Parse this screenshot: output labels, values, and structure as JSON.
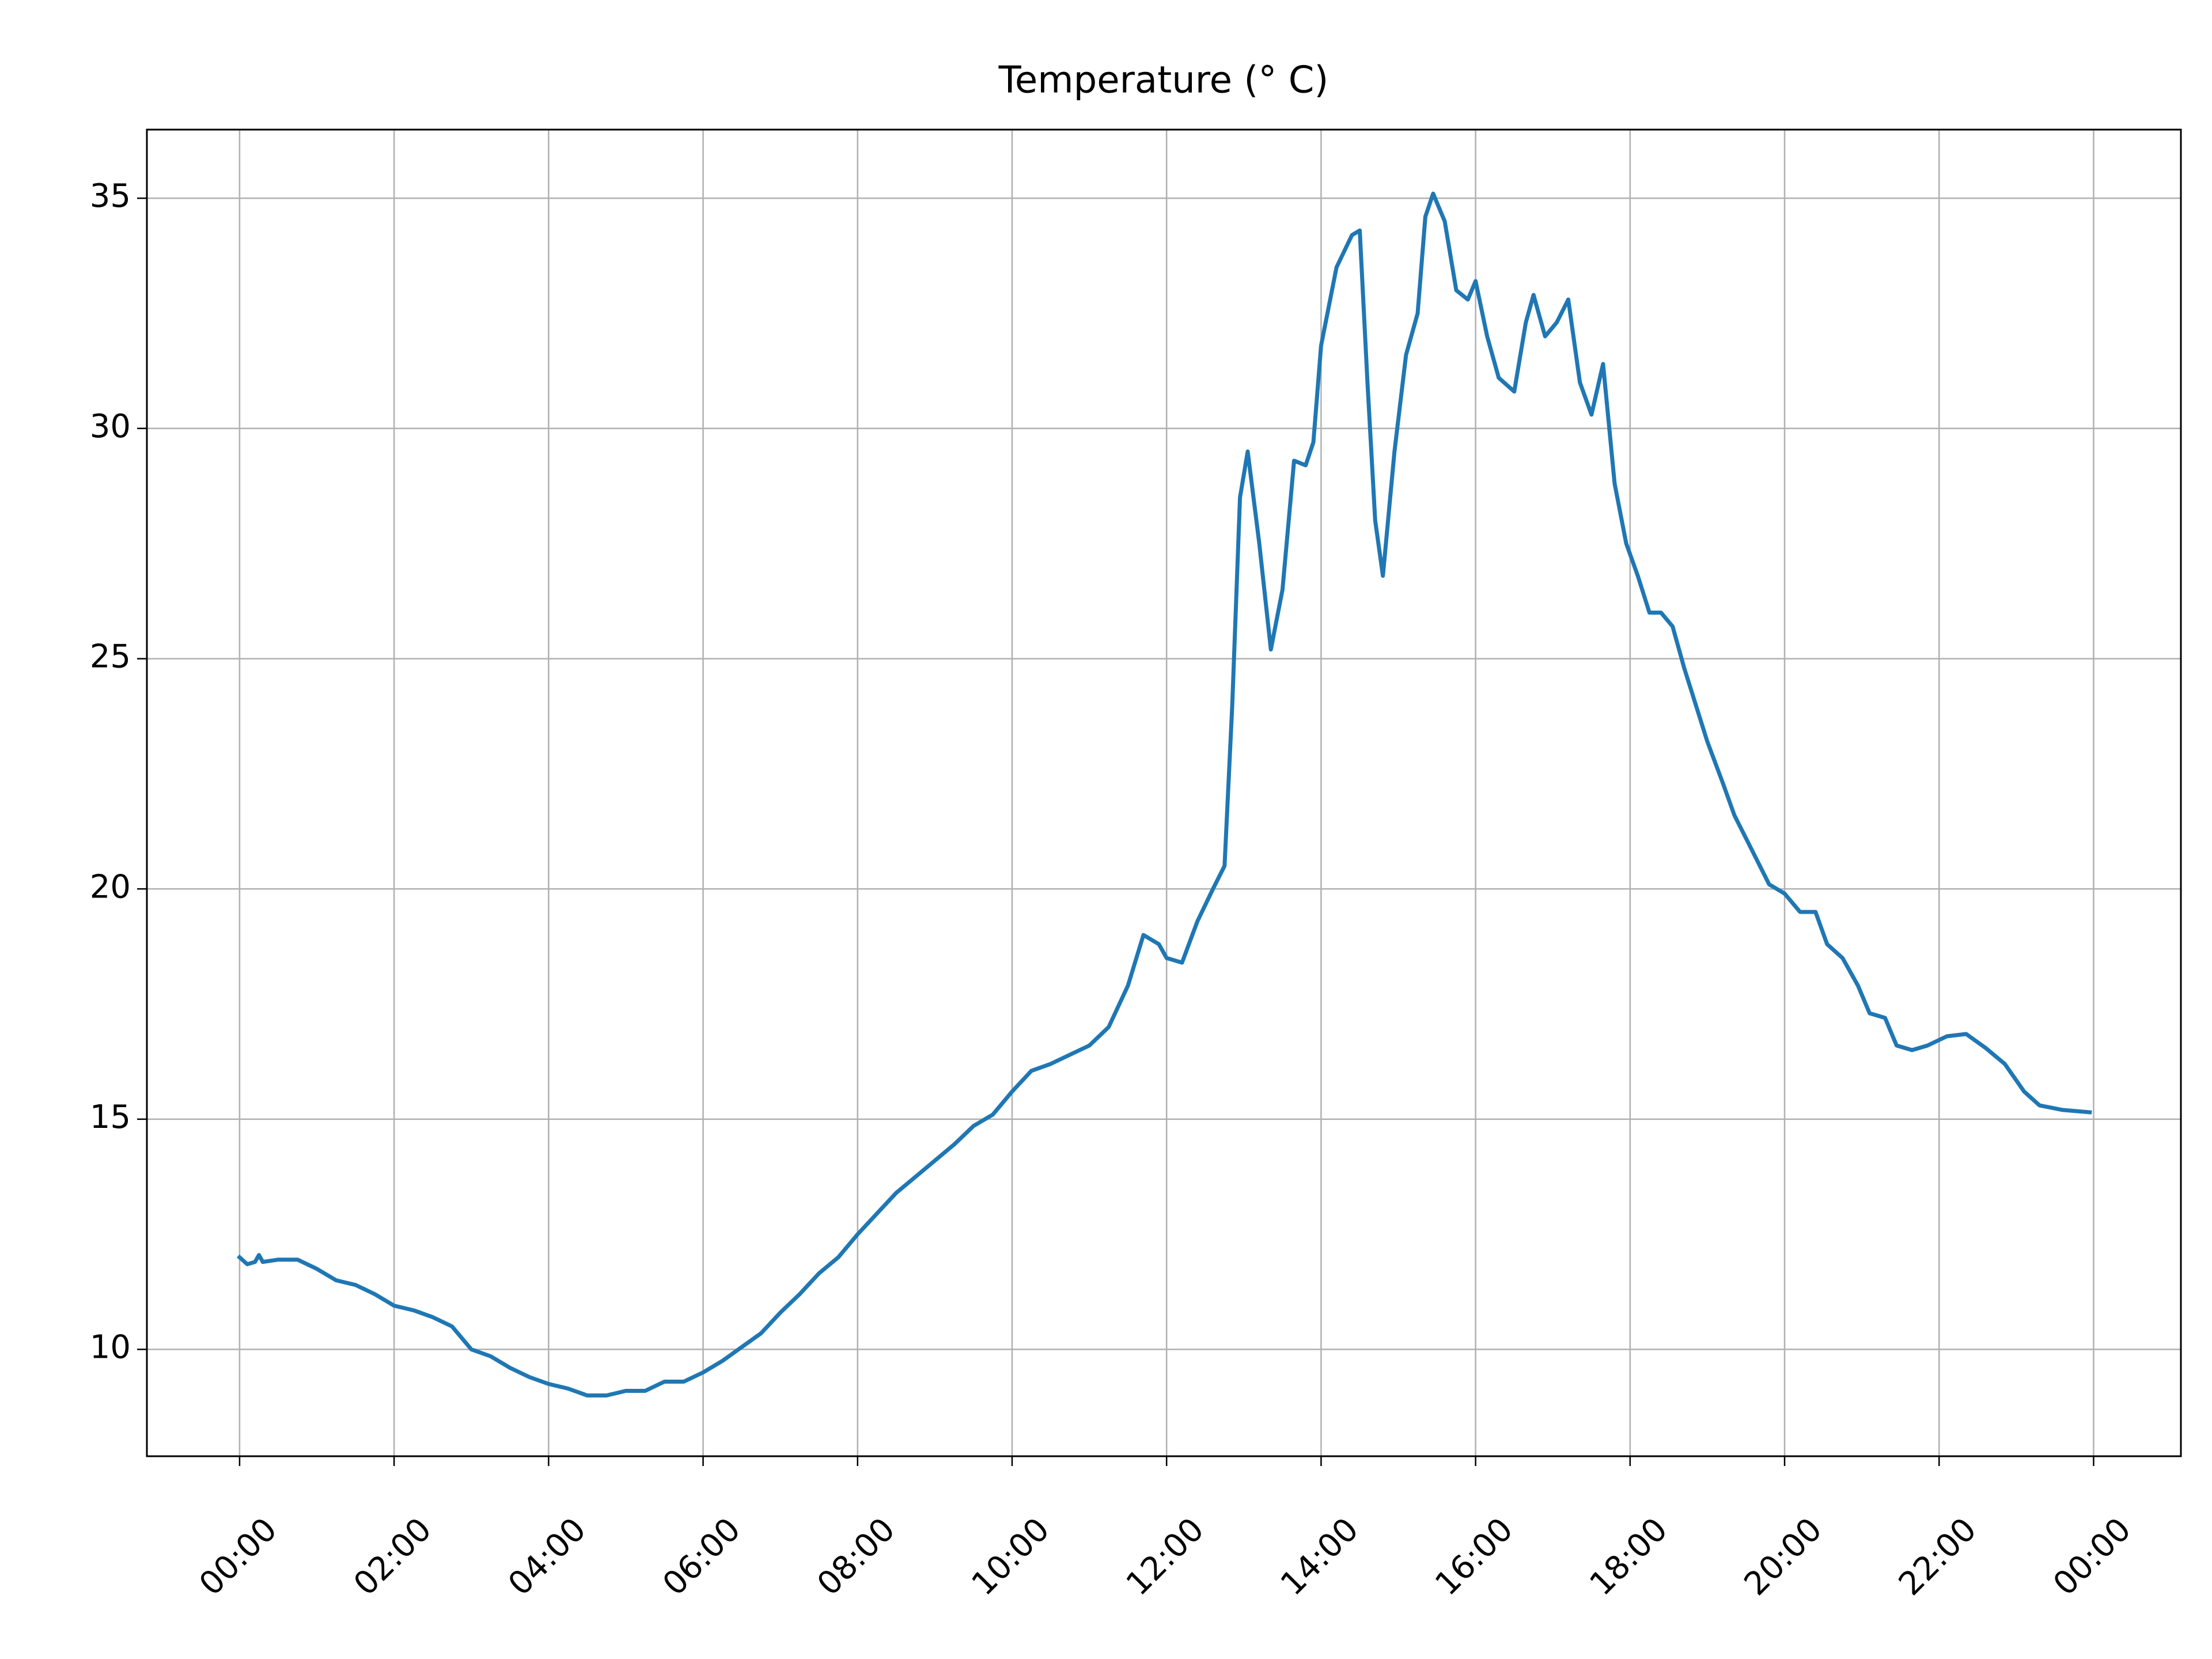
{
  "chart_data": {
    "type": "line",
    "title": "Temperature (° C)",
    "x": [
      0.0,
      0.1,
      0.2,
      0.25,
      0.3,
      0.5,
      0.75,
      1.0,
      1.25,
      1.5,
      1.75,
      2.0,
      2.25,
      2.5,
      2.75,
      3.0,
      3.25,
      3.5,
      3.75,
      4.0,
      4.25,
      4.5,
      4.75,
      5.0,
      5.25,
      5.5,
      5.75,
      6.0,
      6.25,
      6.5,
      6.75,
      7.0,
      7.25,
      7.5,
      7.75,
      8.0,
      8.25,
      8.5,
      8.75,
      9.0,
      9.25,
      9.5,
      9.75,
      10.0,
      10.25,
      10.5,
      10.75,
      11.0,
      11.25,
      11.5,
      11.7,
      11.9,
      12.0,
      12.2,
      12.4,
      12.6,
      12.75,
      12.85,
      12.95,
      13.05,
      13.2,
      13.35,
      13.5,
      13.65,
      13.8,
      13.9,
      14.0,
      14.2,
      14.4,
      14.5,
      14.6,
      14.7,
      14.8,
      14.95,
      15.1,
      15.25,
      15.35,
      15.45,
      15.6,
      15.75,
      15.9,
      16.0,
      16.15,
      16.3,
      16.5,
      16.65,
      16.75,
      16.9,
      17.05,
      17.2,
      17.35,
      17.5,
      17.65,
      17.8,
      17.95,
      18.1,
      18.25,
      18.4,
      18.55,
      18.7,
      18.85,
      19.0,
      19.2,
      19.35,
      19.5,
      19.65,
      19.8,
      20.0,
      20.2,
      20.4,
      20.55,
      20.75,
      20.95,
      21.1,
      21.3,
      21.45,
      21.65,
      21.85,
      22.1,
      22.35,
      22.6,
      22.85,
      23.1,
      23.3,
      23.6,
      23.95
    ],
    "series": [
      {
        "name": "Temperature",
        "color": "#1f77b4",
        "values": [
          12.0,
          11.85,
          11.9,
          12.05,
          11.9,
          11.95,
          11.95,
          11.75,
          11.5,
          11.4,
          11.2,
          10.95,
          10.85,
          10.7,
          10.5,
          10.0,
          9.85,
          9.6,
          9.4,
          9.25,
          9.15,
          9.0,
          9.0,
          9.1,
          9.1,
          9.3,
          9.3,
          9.5,
          9.75,
          10.05,
          10.35,
          10.8,
          11.2,
          11.65,
          12.0,
          12.5,
          12.95,
          13.4,
          13.75,
          14.1,
          14.45,
          14.85,
          15.1,
          15.6,
          16.05,
          16.2,
          16.4,
          16.6,
          17.0,
          17.9,
          19.0,
          18.8,
          18.5,
          18.4,
          19.3,
          20.0,
          20.5,
          24.0,
          28.5,
          29.5,
          27.5,
          25.2,
          26.5,
          29.3,
          29.2,
          29.7,
          31.8,
          33.5,
          34.2,
          34.3,
          31.0,
          28.0,
          26.8,
          29.5,
          31.6,
          32.5,
          34.6,
          35.1,
          34.5,
          33.0,
          32.8,
          33.2,
          32.0,
          31.1,
          30.8,
          32.3,
          32.9,
          32.0,
          32.3,
          32.8,
          31.0,
          30.3,
          31.4,
          28.8,
          27.5,
          26.8,
          26.0,
          26.0,
          25.7,
          24.8,
          24.0,
          23.2,
          22.3,
          21.6,
          21.1,
          20.6,
          20.1,
          19.9,
          19.5,
          19.5,
          18.8,
          18.5,
          17.9,
          17.3,
          17.2,
          16.6,
          16.5,
          16.6,
          16.8,
          16.85,
          16.55,
          16.2,
          15.6,
          15.3,
          15.2,
          15.15
        ]
      }
    ],
    "xlim": [
      -1.2,
      25.13
    ],
    "xticks": [
      {
        "value": 0,
        "label": "00:00"
      },
      {
        "value": 2,
        "label": "02:00"
      },
      {
        "value": 4,
        "label": "04:00"
      },
      {
        "value": 6,
        "label": "06:00"
      },
      {
        "value": 8,
        "label": "08:00"
      },
      {
        "value": 10,
        "label": "10:00"
      },
      {
        "value": 12,
        "label": "12:00"
      },
      {
        "value": 14,
        "label": "14:00"
      },
      {
        "value": 16,
        "label": "16:00"
      },
      {
        "value": 18,
        "label": "18:00"
      },
      {
        "value": 20,
        "label": "20:00"
      },
      {
        "value": 22,
        "label": "22:00"
      },
      {
        "value": 24,
        "label": "00:00"
      }
    ],
    "ylim": [
      7.68,
      36.49
    ],
    "yticks": [
      10,
      15,
      20,
      25,
      30,
      35
    ],
    "grid": true
  }
}
